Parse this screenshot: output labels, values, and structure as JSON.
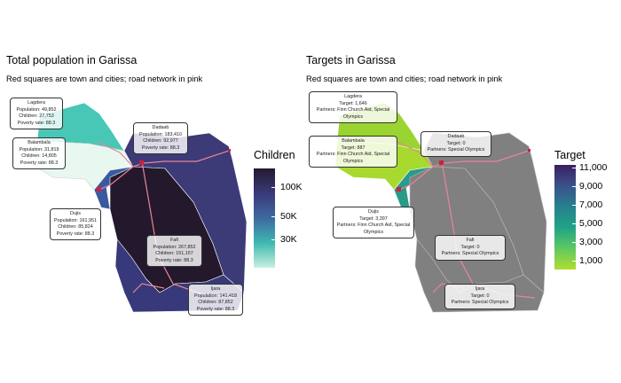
{
  "left_panel": {
    "title": "Total population in Garissa",
    "subtitle": "Red squares are town and cities; road network in pink",
    "legend": {
      "title": "Children",
      "ticks": [
        "100K",
        "50K",
        "30K"
      ],
      "colors": [
        "#241a2e",
        "#3a3a7a",
        "#3d6aa0",
        "#3fb8b0",
        "#c8f0e0"
      ]
    },
    "regions": [
      {
        "name": "Lagdera",
        "lines": [
          "Lagdera",
          "Population: 49,852",
          "Children: 27,753",
          "Poverty rate: 88.3"
        ]
      },
      {
        "name": "Balambala",
        "lines": [
          "Balambala",
          "Population: 31,819",
          "Children: 14,805",
          "Poverty rate: 88.3"
        ]
      },
      {
        "name": "Dadaab",
        "lines": [
          "Dadaab",
          "Population: 183,410",
          "Children: 92,977",
          "Poverty rate: 88.3"
        ]
      },
      {
        "name": "Dujis",
        "lines": [
          "Dujis",
          "Population: 161,951",
          "Children: 85,824",
          "Poverty rate: 88.3"
        ]
      },
      {
        "name": "Fafi",
        "lines": [
          "Fafi",
          "Population: 267,852",
          "Children: 151,157",
          "Poverty rate: 88.3"
        ]
      },
      {
        "name": "Ijara",
        "lines": [
          "Ijara",
          "Population: 141,418",
          "Children: 87,852",
          "Poverty rate: 88.3"
        ]
      }
    ]
  },
  "right_panel": {
    "title": "Targets in Garissa",
    "subtitle": "Red squares are town and cities; road network in pink",
    "legend": {
      "title": "Target",
      "ticks": [
        "11,000",
        "9,000",
        "7,000",
        "5,000",
        "3,000",
        "1,000"
      ],
      "colors": [
        "#3b1f60",
        "#3a528b",
        "#27808e",
        "#20a386",
        "#5ec962",
        "#b0dd2f"
      ]
    },
    "regions": [
      {
        "name": "Lagdera",
        "lines": [
          "Lagdera",
          "Target: 1,646",
          "Partners: Finn Church Aid, Special Olympics"
        ]
      },
      {
        "name": "Balambala",
        "lines": [
          "Balambala",
          "Target: 887",
          "Partners: Finn Church Aid, Special Olympics"
        ]
      },
      {
        "name": "Dadaab",
        "lines": [
          "Dadaab",
          "Target: 0",
          "Partners: Special Olympics"
        ]
      },
      {
        "name": "Dujis",
        "lines": [
          "Dujis",
          "Target: 3,397",
          "Partners: Finn Church Aid, Special Olympics"
        ]
      },
      {
        "name": "Fafi",
        "lines": [
          "Fafi",
          "Target: 0",
          "Partners: Special Olympics"
        ]
      },
      {
        "name": "Ijara",
        "lines": [
          "Ijara",
          "Target: 0",
          "Partners: Special Olympics"
        ]
      }
    ]
  },
  "colors": {
    "road": "#e8859a",
    "town": "#d11f3a",
    "no_target": "#808080",
    "boundary": "#bbbbbb"
  }
}
